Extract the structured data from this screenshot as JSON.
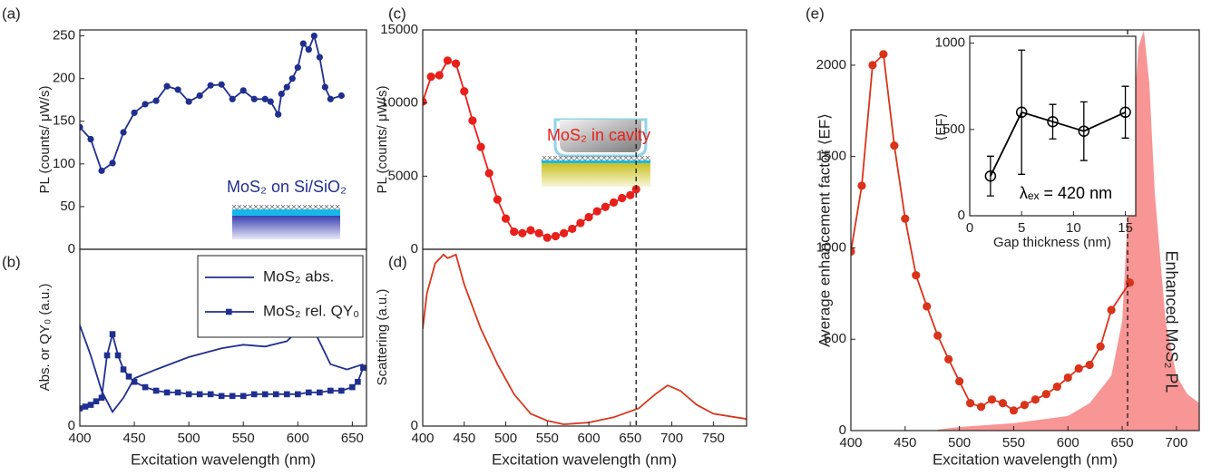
{
  "chart_data": [
    {
      "type": "line",
      "label": "(a)",
      "ylabel": "PL (counts/ μW/s)",
      "xlim": [
        400,
        663
      ],
      "ylim": [
        0,
        257
      ],
      "yticks": [
        0,
        50,
        100,
        150,
        200,
        250
      ],
      "annotations": [
        {
          "text": "MoS₂ on Si/SiO₂",
          "color": "#1f2f8f"
        }
      ],
      "series": [
        {
          "color": "#1f2f8f",
          "marker": "circle",
          "x": [
            400,
            410,
            420,
            430,
            440,
            450,
            460,
            470,
            480,
            490,
            500,
            510,
            520,
            530,
            540,
            550,
            560,
            570,
            575,
            582,
            585,
            590,
            595,
            600,
            605,
            610,
            615,
            620,
            625,
            630,
            640
          ],
          "values": [
            143,
            129,
            92,
            101,
            137,
            160,
            170,
            174,
            191,
            187,
            173,
            180,
            192,
            193,
            176,
            186,
            176,
            176,
            173,
            158,
            182,
            190,
            200,
            213,
            241,
            234,
            250,
            225,
            190,
            176,
            180
          ]
        }
      ]
    },
    {
      "type": "line",
      "label": "(b)",
      "ylabel": "Abs. or QY₀ (a.u.)",
      "xlabel": "Excitation wavelength (nm)",
      "xlim": [
        400,
        663
      ],
      "ylim": [
        0,
        1
      ],
      "yticks": [
        0
      ],
      "xticks": [
        400,
        450,
        500,
        550,
        600,
        650
      ],
      "legend": "upper right",
      "series": [
        {
          "name": "MoS₂ abs.",
          "color": "#1f2f8f",
          "marker": "none",
          "x": [
            400,
            410,
            420,
            430,
            440,
            450,
            470,
            500,
            530,
            550,
            570,
            590,
            605,
            615,
            630,
            645,
            660
          ],
          "values": [
            0.57,
            0.4,
            0.2,
            0.08,
            0.16,
            0.27,
            0.32,
            0.39,
            0.44,
            0.46,
            0.45,
            0.48,
            0.57,
            0.54,
            0.35,
            0.32,
            0.35
          ]
        },
        {
          "name": "MoS₂ rel. QY₀",
          "color": "#1f2f8f",
          "marker": "square",
          "x": [
            400,
            405,
            410,
            415,
            420,
            425,
            430,
            435,
            440,
            445,
            450,
            460,
            470,
            480,
            490,
            500,
            510,
            520,
            530,
            540,
            550,
            560,
            570,
            580,
            590,
            600,
            610,
            620,
            630,
            640,
            650,
            655,
            660
          ],
          "values": [
            0.1,
            0.11,
            0.12,
            0.14,
            0.16,
            0.4,
            0.52,
            0.4,
            0.32,
            0.28,
            0.25,
            0.22,
            0.2,
            0.19,
            0.19,
            0.18,
            0.18,
            0.18,
            0.17,
            0.17,
            0.17,
            0.18,
            0.18,
            0.18,
            0.18,
            0.18,
            0.19,
            0.19,
            0.2,
            0.2,
            0.22,
            0.25,
            0.33
          ]
        }
      ]
    },
    {
      "type": "line",
      "label": "(c)",
      "ylabel": "PL (counts/ μW/s)",
      "xlim": [
        400,
        790
      ],
      "ylim": [
        0,
        15000
      ],
      "yticks": [
        0,
        5000,
        10000,
        15000
      ],
      "vline": 657,
      "annotations": [
        {
          "text": "MoS₂ in cavity",
          "color": "#e8201a"
        }
      ],
      "series": [
        {
          "color": "#e8201a",
          "marker": "circle",
          "x": [
            400,
            410,
            420,
            430,
            440,
            450,
            460,
            470,
            480,
            490,
            500,
            510,
            520,
            530,
            540,
            550,
            560,
            570,
            580,
            590,
            600,
            610,
            620,
            630,
            640,
            650,
            657
          ],
          "values": [
            10100,
            11800,
            11900,
            12900,
            12700,
            10800,
            8800,
            7000,
            5200,
            3400,
            2100,
            1200,
            1100,
            1300,
            1100,
            800,
            900,
            1100,
            1400,
            1800,
            2200,
            2600,
            2900,
            3200,
            3500,
            3700,
            4100
          ]
        }
      ]
    },
    {
      "type": "line",
      "label": "(d)",
      "ylabel": "Scattering (a.u.)",
      "xlabel": "Excitation wavelength (nm)",
      "xlim": [
        400,
        790
      ],
      "ylim": [
        0,
        1
      ],
      "yticks": [
        0
      ],
      "xticks": [
        400,
        450,
        500,
        550,
        600,
        650,
        700,
        750
      ],
      "vline": 657,
      "series": [
        {
          "color": "#d9361c",
          "marker": "none",
          "x": [
            400,
            405,
            415,
            425,
            430,
            440,
            450,
            470,
            490,
            510,
            530,
            550,
            570,
            600,
            630,
            660,
            680,
            695,
            710,
            730,
            750,
            790
          ],
          "values": [
            0.55,
            0.75,
            0.92,
            0.97,
            0.95,
            0.97,
            0.8,
            0.55,
            0.35,
            0.18,
            0.07,
            0.03,
            0.01,
            0.02,
            0.05,
            0.1,
            0.18,
            0.23,
            0.2,
            0.12,
            0.07,
            0.04
          ]
        }
      ]
    },
    {
      "type": "line",
      "label": "(e)",
      "ylabel": "Average enhancement factor ⟨EF⟩",
      "xlabel": "Excitation wavelength (nm)",
      "xlim": [
        400,
        721
      ],
      "ylim": [
        0,
        2193
      ],
      "yticks": [
        0,
        500,
        1000,
        1500,
        2000
      ],
      "xticks": [
        400,
        450,
        500,
        550,
        600,
        650,
        700
      ],
      "vline": 655,
      "annotations": [
        {
          "text": "Enhanced MoS₂ PL",
          "color": "#222222"
        }
      ],
      "series": [
        {
          "color": "#f78a8a",
          "marker": "none",
          "fill": true,
          "x": [
            480,
            500,
            550,
            600,
            620,
            640,
            650,
            658,
            665,
            670,
            675,
            680,
            690,
            700,
            710,
            721
          ],
          "values": [
            5,
            20,
            40,
            80,
            150,
            300,
            600,
            1500,
            2100,
            2190,
            1900,
            1300,
            600,
            300,
            200,
            150
          ]
        },
        {
          "color": "#d9331a",
          "marker": "circle",
          "x": [
            400,
            410,
            420,
            430,
            440,
            450,
            460,
            470,
            480,
            490,
            500,
            510,
            520,
            530,
            540,
            550,
            560,
            570,
            580,
            590,
            600,
            610,
            620,
            630,
            640,
            657
          ],
          "values": [
            980,
            1340,
            2000,
            2060,
            1560,
            1160,
            850,
            680,
            520,
            390,
            270,
            150,
            130,
            170,
            150,
            110,
            140,
            170,
            200,
            240,
            290,
            340,
            360,
            460,
            660,
            810
          ]
        }
      ]
    },
    {
      "type": "line",
      "ylabel": "⟨EF⟩",
      "xlabel": "Gap thickness (nm)",
      "xlim": [
        0,
        16
      ],
      "ylim": [
        0,
        1040
      ],
      "yticks": [
        0,
        500,
        1000
      ],
      "xticks": [
        0,
        5,
        10,
        15
      ],
      "annotations": [
        {
          "text": "λₑₓ = 420 nm",
          "color": "#000000"
        }
      ],
      "series": [
        {
          "color": "#000000",
          "marker": "open-circle",
          "x": [
            2,
            5,
            8,
            11,
            15
          ],
          "values": [
            230,
            600,
            545,
            490,
            600
          ],
          "errors": [
            115,
            360,
            100,
            170,
            150
          ]
        }
      ]
    }
  ]
}
